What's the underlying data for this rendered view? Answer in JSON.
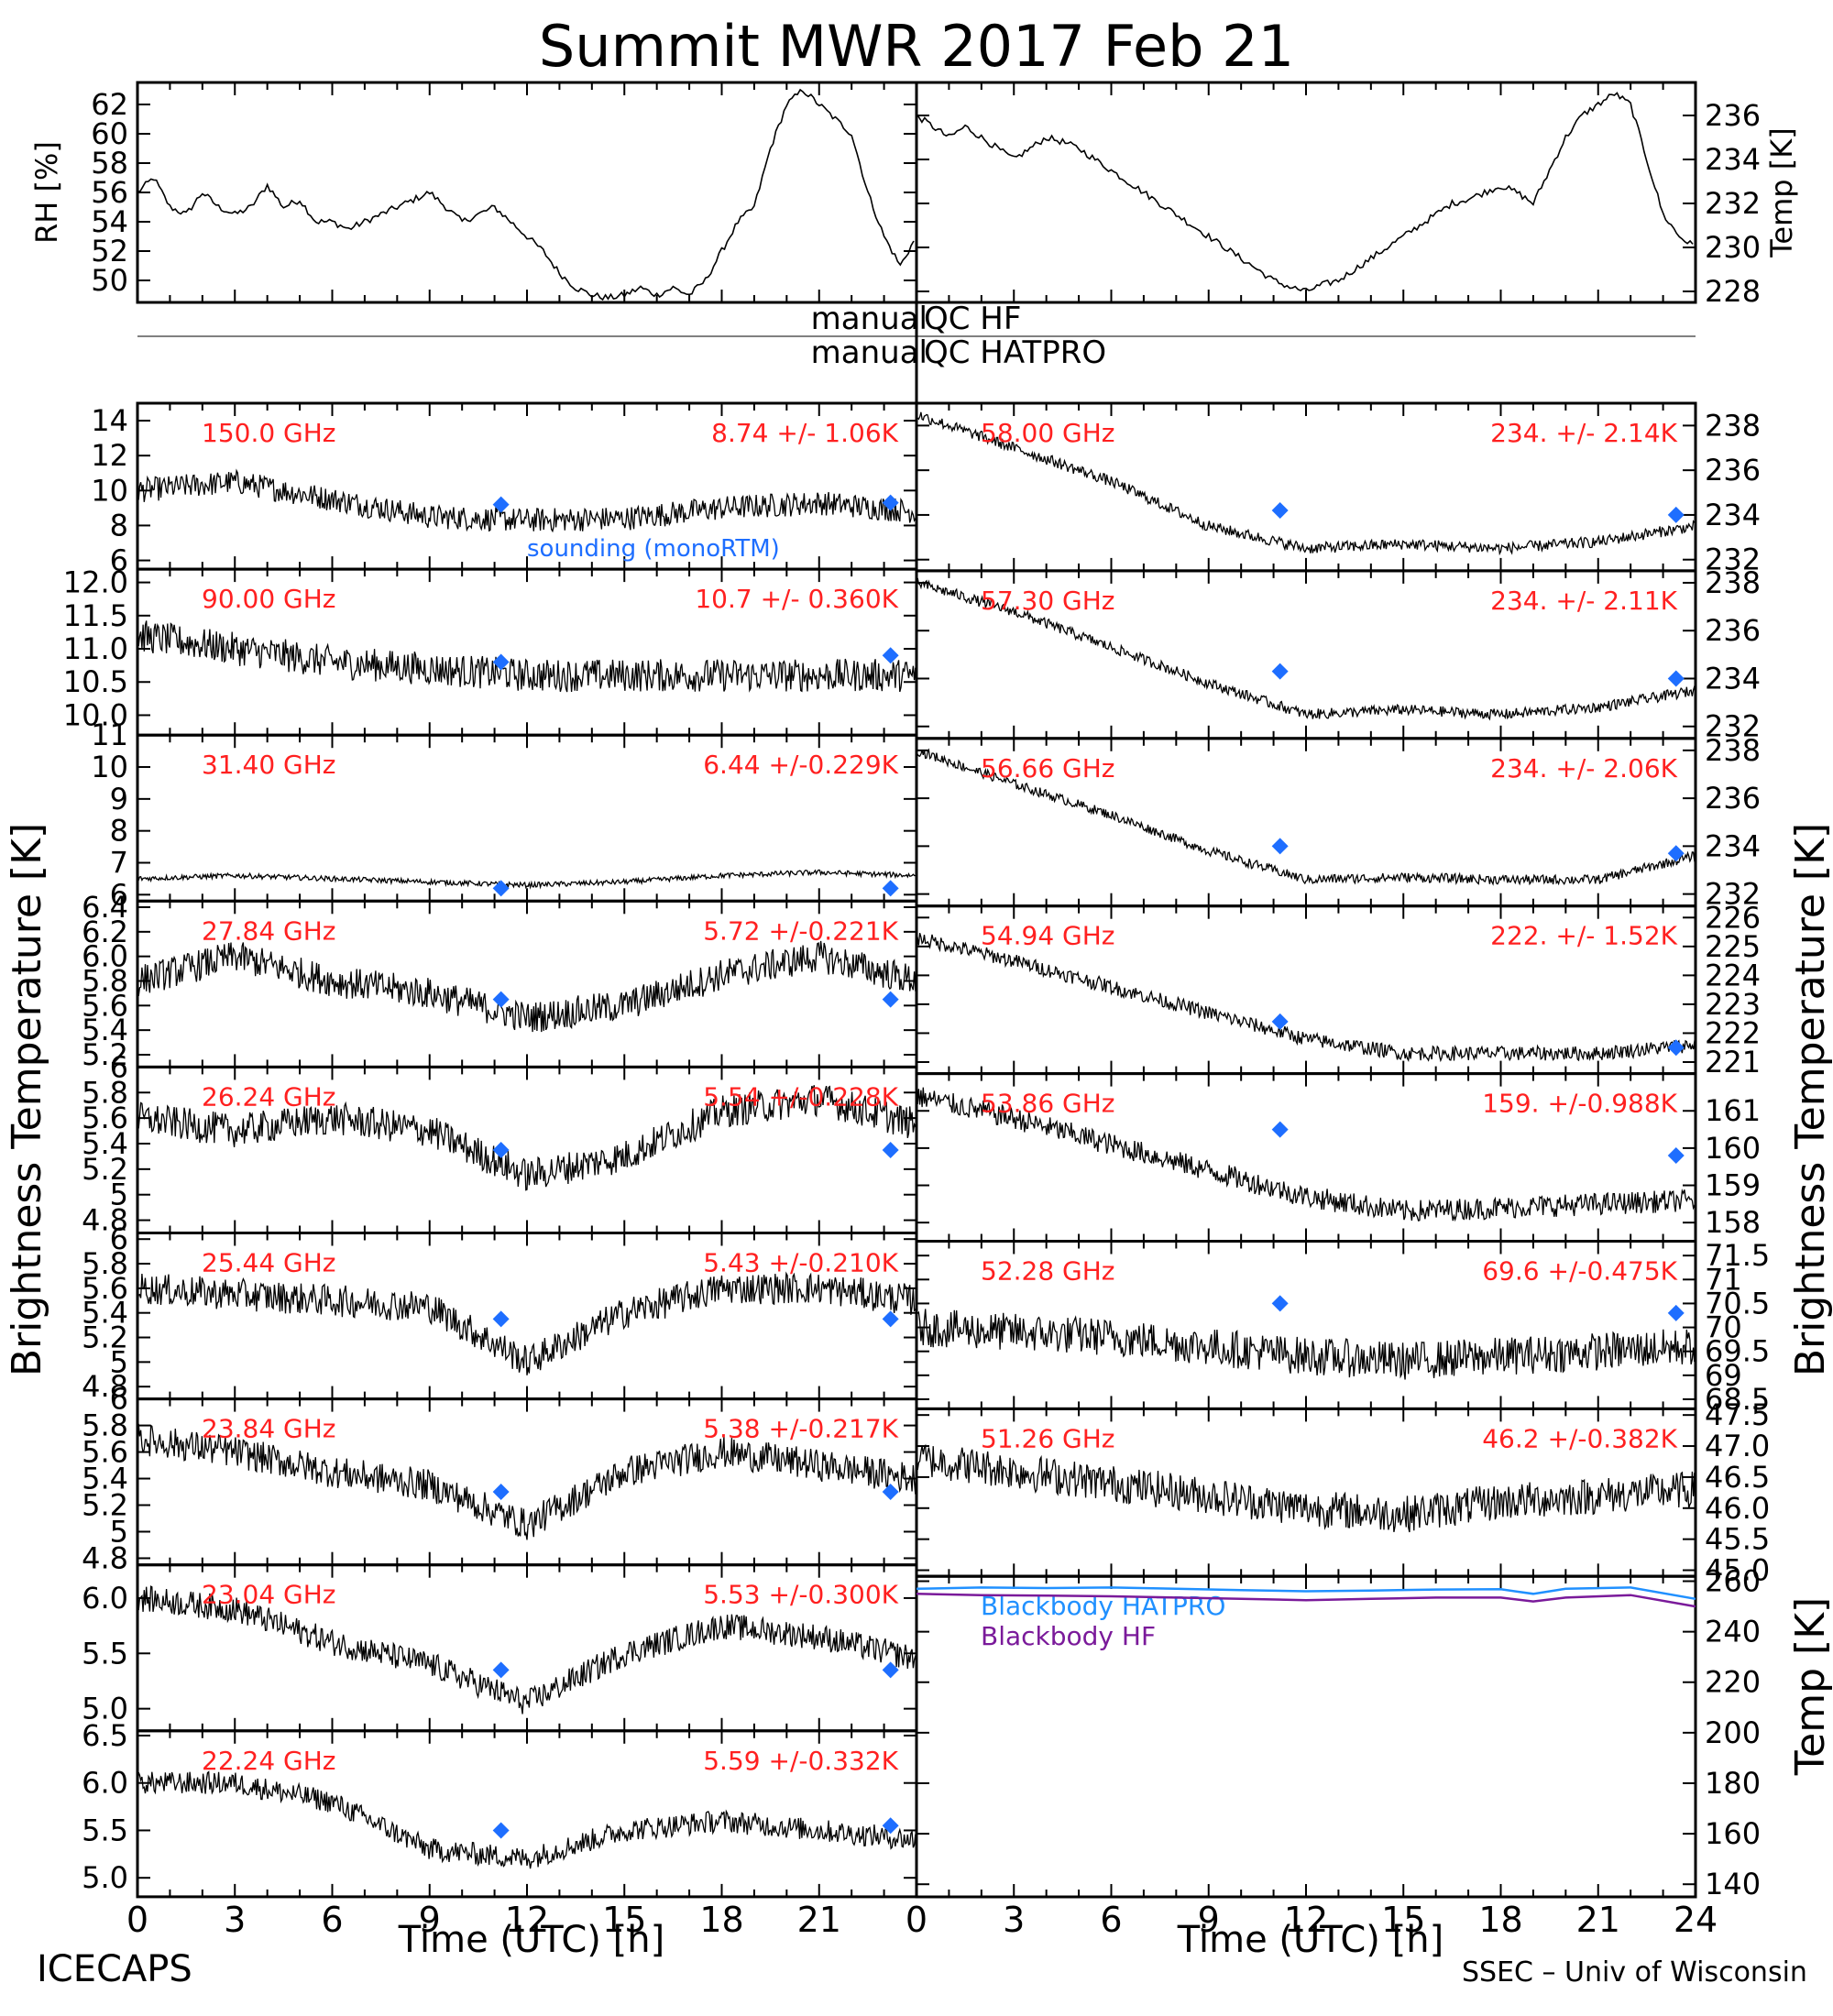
{
  "title": "Summit MWR 2017 Feb 21",
  "footer_left": "ICECAPS",
  "footer_right": "SSEC – Univ of Wisconsin",
  "colors": {
    "trace": "#000000",
    "label": "#ff2020",
    "marker": "#1e6eff",
    "blue_line": "#2090ff",
    "purple_line": "#7a1a9a"
  },
  "qc": {
    "left_1": "manual",
    "left_2": "manual",
    "right_1": "QC HF",
    "right_2": "QC HATPRO"
  },
  "axes": {
    "x_label_left": "Time (UTC) [h]",
    "x_label_right": "Time (UTC) [h]",
    "x_ticks_left": [
      "0",
      "3",
      "6",
      "9",
      "12",
      "15",
      "18",
      "21"
    ],
    "x_ticks_right": [
      "0",
      "3",
      "6",
      "9",
      "12",
      "15",
      "18",
      "21",
      "24"
    ],
    "y_label_left": "Brightness Temperature [K]",
    "y_label_right": "Brightness Temperature [K]",
    "y_label_bb": "Temp [K]"
  },
  "chart_data": [
    {
      "type": "line",
      "panel": "rh",
      "ylabel": "RH [%]",
      "xlim": [
        0,
        24
      ],
      "ylim": [
        48.5,
        63.5
      ],
      "ticks": [
        50,
        52,
        54,
        56,
        58,
        60,
        62
      ],
      "x": [
        0,
        0.5,
        1,
        1.5,
        2,
        2.5,
        3,
        3.5,
        4,
        4.5,
        5,
        5.5,
        6,
        6.5,
        7,
        7.5,
        8,
        8.5,
        9,
        9.5,
        10,
        10.5,
        11,
        11.5,
        12,
        12.5,
        13,
        13.5,
        14,
        14.5,
        15,
        15.5,
        16,
        16.5,
        17,
        17.5,
        18,
        18.5,
        19,
        19.5,
        20,
        20.5,
        21,
        21.5,
        22,
        22.5,
        23,
        23.5,
        24
      ],
      "y": [
        56,
        57,
        55,
        54.5,
        56,
        55,
        54.5,
        55,
        56.5,
        55,
        55.5,
        54,
        54,
        53.5,
        54,
        54.5,
        55,
        55.5,
        56,
        55,
        54,
        54.5,
        55,
        54,
        53,
        52,
        50.5,
        49.5,
        49,
        48.8,
        49,
        49.5,
        49,
        49.5,
        49,
        50,
        52,
        54,
        55,
        59,
        62,
        63,
        62,
        61,
        60,
        56,
        53,
        51,
        53
      ]
    },
    {
      "type": "line",
      "panel": "temp",
      "ylabel": "Temp [K]",
      "xlim": [
        0,
        24
      ],
      "ylim": [
        227.5,
        237.5
      ],
      "ticks": [
        228,
        230,
        232,
        234,
        236
      ],
      "x": [
        0,
        0.5,
        1,
        1.5,
        2,
        2.5,
        3,
        3.5,
        4,
        4.5,
        5,
        5.5,
        6,
        6.5,
        7,
        7.5,
        8,
        8.5,
        9,
        9.5,
        10,
        10.5,
        11,
        11.5,
        12,
        12.5,
        13,
        13.5,
        14,
        14.5,
        15,
        15.5,
        16,
        16.5,
        17,
        17.5,
        18,
        18.5,
        19,
        19.5,
        20,
        20.5,
        21,
        21.5,
        22,
        22.5,
        23,
        23.5,
        24
      ],
      "y": [
        236,
        235.5,
        235,
        235.5,
        235,
        234.5,
        234,
        234.5,
        235,
        234.8,
        234.5,
        234,
        233.5,
        233,
        232.5,
        232,
        231.5,
        231,
        230.5,
        230,
        229.5,
        229,
        228.5,
        228.2,
        228,
        228.3,
        228.5,
        229,
        229.5,
        230,
        230.5,
        231,
        231.5,
        232,
        232.2,
        232.5,
        232.8,
        232.5,
        232,
        233.5,
        235,
        236,
        236.5,
        237,
        236.5,
        234,
        231.5,
        230.5,
        230
      ]
    },
    {
      "type": "line",
      "panel": "hf_150",
      "channel": "150.0 GHz",
      "stats": "8.74 +/-  1.06K",
      "note": "sounding (monoRTM)",
      "xlim": [
        0,
        24
      ],
      "ylim": [
        5.5,
        15
      ],
      "ticks": [
        6,
        8,
        10,
        12,
        14
      ],
      "anchors": [
        10,
        10.5,
        9.5,
        8.5,
        8.3,
        8.4,
        9,
        9.3,
        8.8
      ],
      "noise": 0.7,
      "markers": [
        [
          11.2,
          9.2
        ],
        [
          23.2,
          9.3
        ]
      ]
    },
    {
      "type": "line",
      "panel": "hf_90",
      "channel": "90.00 GHz",
      "stats": "10.7 +/- 0.360K",
      "xlim": [
        0,
        24
      ],
      "ylim": [
        9.7,
        12.2
      ],
      "ticks": [
        10.0,
        10.5,
        11.0,
        11.5,
        12.0
      ],
      "anchors": [
        11.2,
        11.0,
        10.8,
        10.7,
        10.6,
        10.6,
        10.6,
        10.6,
        10.6
      ],
      "noise": 0.25,
      "markers": [
        [
          11.2,
          10.8
        ],
        [
          23.2,
          10.9
        ]
      ]
    },
    {
      "type": "line",
      "panel": "hf_31",
      "channel": "31.40 GHz",
      "stats": "6.44 +/-0.229K",
      "xlim": [
        0,
        24
      ],
      "ylim": [
        5.8,
        11
      ],
      "ticks": [
        6,
        7,
        8,
        9,
        10,
        11
      ],
      "anchors": [
        6.5,
        6.6,
        6.5,
        6.4,
        6.3,
        6.4,
        6.6,
        6.7,
        6.6
      ],
      "noise": 0.08,
      "markers": [
        [
          11.2,
          6.2
        ],
        [
          23.2,
          6.2
        ]
      ]
    },
    {
      "type": "line",
      "panel": "hf_27",
      "channel": "27.84 GHz",
      "stats": "5.72 +/-0.221K",
      "xlim": [
        0,
        24
      ],
      "ylim": [
        5.1,
        6.45
      ],
      "ticks": [
        5.2,
        5.4,
        5.6,
        5.8,
        6.0,
        6.2,
        6.4
      ],
      "anchors": [
        5.8,
        6.0,
        5.8,
        5.7,
        5.5,
        5.6,
        5.85,
        6.0,
        5.8
      ],
      "noise": 0.13,
      "markers": [
        [
          11.2,
          5.65
        ],
        [
          23.2,
          5.65
        ]
      ]
    },
    {
      "type": "line",
      "panel": "hf_26",
      "channel": "26.24 GHz",
      "stats": "5.54 +/-0.228K",
      "xlim": [
        0,
        24
      ],
      "ylim": [
        4.7,
        6.0
      ],
      "ticks": [
        4.8,
        5.0,
        5.2,
        5.4,
        5.6,
        5.8,
        6.0
      ],
      "anchors": [
        5.6,
        5.5,
        5.6,
        5.5,
        5.15,
        5.3,
        5.65,
        5.75,
        5.55
      ],
      "noise": 0.13,
      "markers": [
        [
          11.2,
          5.35
        ],
        [
          23.2,
          5.35
        ]
      ]
    },
    {
      "type": "line",
      "panel": "hf_25",
      "channel": "25.44 GHz",
      "stats": "5.43 +/-0.210K",
      "xlim": [
        0,
        24
      ],
      "ylim": [
        4.7,
        6.05
      ],
      "ticks": [
        4.8,
        5.0,
        5.2,
        5.4,
        5.6,
        5.8,
        6.0
      ],
      "anchors": [
        5.6,
        5.55,
        5.5,
        5.45,
        5.0,
        5.4,
        5.6,
        5.6,
        5.5
      ],
      "noise": 0.13,
      "markers": [
        [
          11.2,
          5.35
        ],
        [
          23.2,
          5.35
        ]
      ]
    },
    {
      "type": "line",
      "panel": "hf_23_8",
      "channel": "23.84 GHz",
      "stats": "5.38 +/-0.217K",
      "xlim": [
        0,
        24
      ],
      "ylim": [
        4.75,
        6.0
      ],
      "ticks": [
        4.8,
        5.0,
        5.2,
        5.4,
        5.6,
        5.8,
        6.0
      ],
      "anchors": [
        5.7,
        5.6,
        5.45,
        5.35,
        5.05,
        5.45,
        5.6,
        5.5,
        5.4
      ],
      "noise": 0.12,
      "markers": [
        [
          11.2,
          5.3
        ],
        [
          23.2,
          5.3
        ]
      ]
    },
    {
      "type": "line",
      "panel": "hf_23_0",
      "channel": "23.04 GHz",
      "stats": "5.53 +/-0.300K",
      "xlim": [
        0,
        24
      ],
      "ylim": [
        4.8,
        6.3
      ],
      "ticks": [
        5.0,
        5.5,
        6.0
      ],
      "anchors": [
        6.0,
        5.9,
        5.6,
        5.4,
        5.05,
        5.5,
        5.75,
        5.65,
        5.45
      ],
      "noise": 0.12,
      "markers": [
        [
          11.2,
          5.35
        ],
        [
          23.2,
          5.35
        ]
      ]
    },
    {
      "type": "line",
      "panel": "hf_22",
      "channel": "22.24 GHz",
      "stats": "5.59 +/-0.332K",
      "xlim": [
        0,
        24
      ],
      "ylim": [
        4.8,
        6.55
      ],
      "ticks": [
        5.0,
        5.5,
        6.0,
        6.5
      ],
      "anchors": [
        6.0,
        6.0,
        5.8,
        5.3,
        5.2,
        5.5,
        5.6,
        5.5,
        5.4
      ],
      "noise": 0.12,
      "markers": [
        [
          11.2,
          5.5
        ],
        [
          23.2,
          5.55
        ]
      ]
    },
    {
      "type": "line",
      "panel": "hp_58",
      "channel": "58.00 GHz",
      "stats": "234. +/- 2.14K",
      "xlim": [
        0,
        24
      ],
      "ylim": [
        231.5,
        239
      ],
      "ticks": [
        232,
        234,
        236,
        238
      ],
      "anchors": [
        238.5,
        237,
        235.5,
        233.5,
        232.5,
        232.7,
        232.5,
        232.8,
        233.5
      ],
      "noise": 0.25,
      "markers": [
        [
          11.2,
          234.2
        ],
        [
          23.4,
          234.0
        ]
      ]
    },
    {
      "type": "line",
      "panel": "hp_57",
      "channel": "57.30 GHz",
      "stats": "234. +/- 2.11K",
      "xlim": [
        0,
        24
      ],
      "ylim": [
        231.5,
        238.5
      ],
      "ticks": [
        232,
        234,
        236,
        238
      ],
      "anchors": [
        238,
        236.8,
        235.3,
        233.8,
        232.5,
        232.7,
        232.5,
        232.8,
        233.5
      ],
      "noise": 0.22,
      "markers": [
        [
          11.2,
          234.3
        ],
        [
          23.4,
          234.0
        ]
      ]
    },
    {
      "type": "line",
      "panel": "hp_56",
      "channel": "56.66 GHz",
      "stats": "234. +/- 2.06K",
      "xlim": [
        0,
        24
      ],
      "ylim": [
        231.5,
        238.5
      ],
      "ticks": [
        232,
        234,
        236,
        238
      ],
      "anchors": [
        238,
        236.6,
        235.3,
        233.8,
        232.6,
        232.7,
        232.6,
        232.6,
        233.6
      ],
      "noise": 0.2,
      "markers": [
        [
          11.2,
          234.0
        ],
        [
          23.4,
          233.7
        ]
      ]
    },
    {
      "type": "line",
      "panel": "hp_54",
      "channel": "54.94 GHz",
      "stats": "222. +/- 1.52K",
      "xlim": [
        0,
        24
      ],
      "ylim": [
        220.6,
        226.4
      ],
      "ticks": [
        221,
        222,
        223,
        224,
        225,
        226
      ],
      "anchors": [
        225.3,
        224.5,
        223.6,
        222.7,
        221.8,
        221.3,
        221.3,
        221.3,
        221.6
      ],
      "noise": 0.25,
      "markers": [
        [
          11.2,
          222.4
        ],
        [
          23.4,
          221.5
        ]
      ]
    },
    {
      "type": "line",
      "panel": "hp_53",
      "channel": "53.86 GHz",
      "stats": "159. +/-0.988K",
      "xlim": [
        0,
        24
      ],
      "ylim": [
        157.5,
        162
      ],
      "ticks": [
        158,
        159,
        160,
        161
      ],
      "anchors": [
        161.4,
        160.8,
        160.1,
        159.4,
        158.7,
        158.3,
        158.4,
        158.5,
        158.6
      ],
      "noise": 0.3,
      "markers": [
        [
          11.2,
          160.5
        ],
        [
          23.4,
          159.8
        ]
      ]
    },
    {
      "type": "line",
      "panel": "hp_52",
      "channel": "52.28 GHz",
      "stats": "69.6 +/-0.475K",
      "xlim": [
        0,
        24
      ],
      "ylim": [
        68.3,
        71.8
      ],
      "ticks": [
        68.5,
        69.0,
        69.5,
        70.0,
        70.5,
        71.0,
        71.5
      ],
      "anchors": [
        70.0,
        69.9,
        69.8,
        69.6,
        69.4,
        69.3,
        69.4,
        69.5,
        69.6
      ],
      "noise": 0.4,
      "markers": [
        [
          11.2,
          70.5
        ],
        [
          23.4,
          70.3
        ]
      ]
    },
    {
      "type": "line",
      "panel": "hp_51",
      "channel": "51.26 GHz",
      "stats": "46.2 +/-0.382K",
      "xlim": [
        0,
        24
      ],
      "ylim": [
        44.9,
        47.6
      ],
      "ticks": [
        45.0,
        45.5,
        46.0,
        46.5,
        47.0,
        47.5
      ],
      "anchors": [
        46.8,
        46.6,
        46.4,
        46.2,
        46.0,
        45.9,
        46.1,
        46.2,
        46.3
      ],
      "noise": 0.3,
      "markers": []
    },
    {
      "type": "line",
      "panel": "blackbody",
      "ylabel": "Temp [K]",
      "xlim": [
        0,
        24
      ],
      "ylim": [
        135,
        262
      ],
      "ticks": [
        140,
        160,
        180,
        200,
        220,
        240,
        260
      ],
      "x": [
        0,
        2,
        4,
        6,
        8,
        10,
        12,
        14,
        16,
        18,
        19,
        20,
        22,
        24
      ],
      "series": [
        {
          "name": "Blackbody HATPRO",
          "color": "#2090ff",
          "values": [
            257,
            257.5,
            257.3,
            257.5,
            257,
            256.5,
            256,
            256.3,
            256.7,
            256.8,
            255,
            257,
            257.5,
            253
          ]
        },
        {
          "name": "Blackbody HF",
          "color": "#7a1a9a",
          "values": [
            255,
            254.5,
            254.3,
            254,
            253.5,
            253,
            252.5,
            253,
            253.5,
            253.5,
            252,
            253.5,
            254.5,
            250
          ]
        }
      ]
    }
  ]
}
